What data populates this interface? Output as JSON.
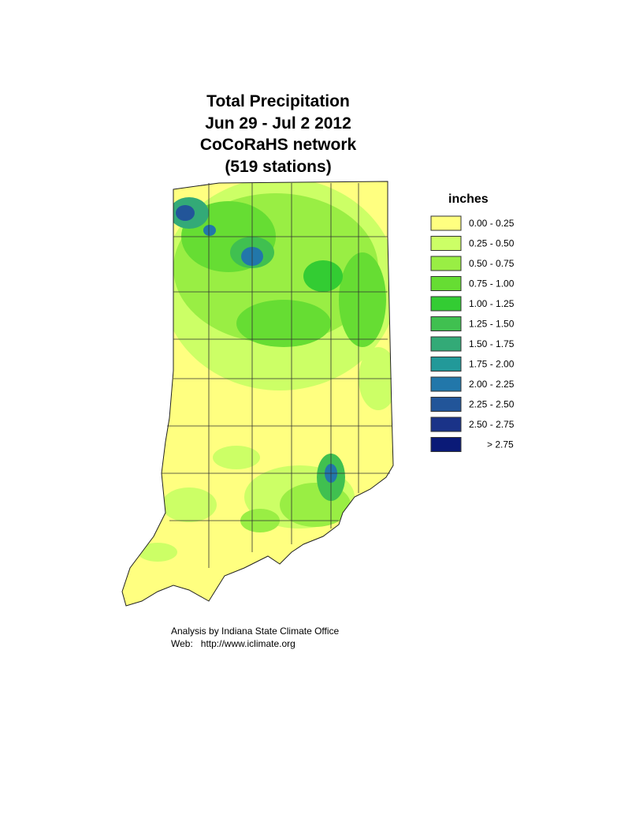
{
  "title": [
    "Total Precipitation",
    "Jun 29 - Jul 2 2012",
    "CoCoRaHS network",
    "(519 stations)"
  ],
  "legend": {
    "title": "inches",
    "items": [
      {
        "label": "0.00 - 0.25",
        "color": "#ffff80"
      },
      {
        "label": "0.25 - 0.50",
        "color": "#ccff66"
      },
      {
        "label": "0.50 - 0.75",
        "color": "#99ee44"
      },
      {
        "label": "0.75 - 1.00",
        "color": "#66dd33"
      },
      {
        "label": "1.00 - 1.25",
        "color": "#33cc33"
      },
      {
        "label": "1.25 - 1.50",
        "color": "#40c050"
      },
      {
        "label": "1.50 - 1.75",
        "color": "#33aa77"
      },
      {
        "label": "1.75 - 2.00",
        "color": "#229999"
      },
      {
        "label": "2.00 - 2.25",
        "color": "#2277aa"
      },
      {
        "label": "2.25 - 2.50",
        "color": "#225599"
      },
      {
        "label": "2.50 - 2.75",
        "color": "#1a3388"
      },
      {
        "label": "> 2.75",
        "color": "#0a1a77"
      }
    ]
  },
  "footer": [
    "Analysis by Indiana State Climate Office",
    "Web:   http://www.iclimate.org"
  ]
}
